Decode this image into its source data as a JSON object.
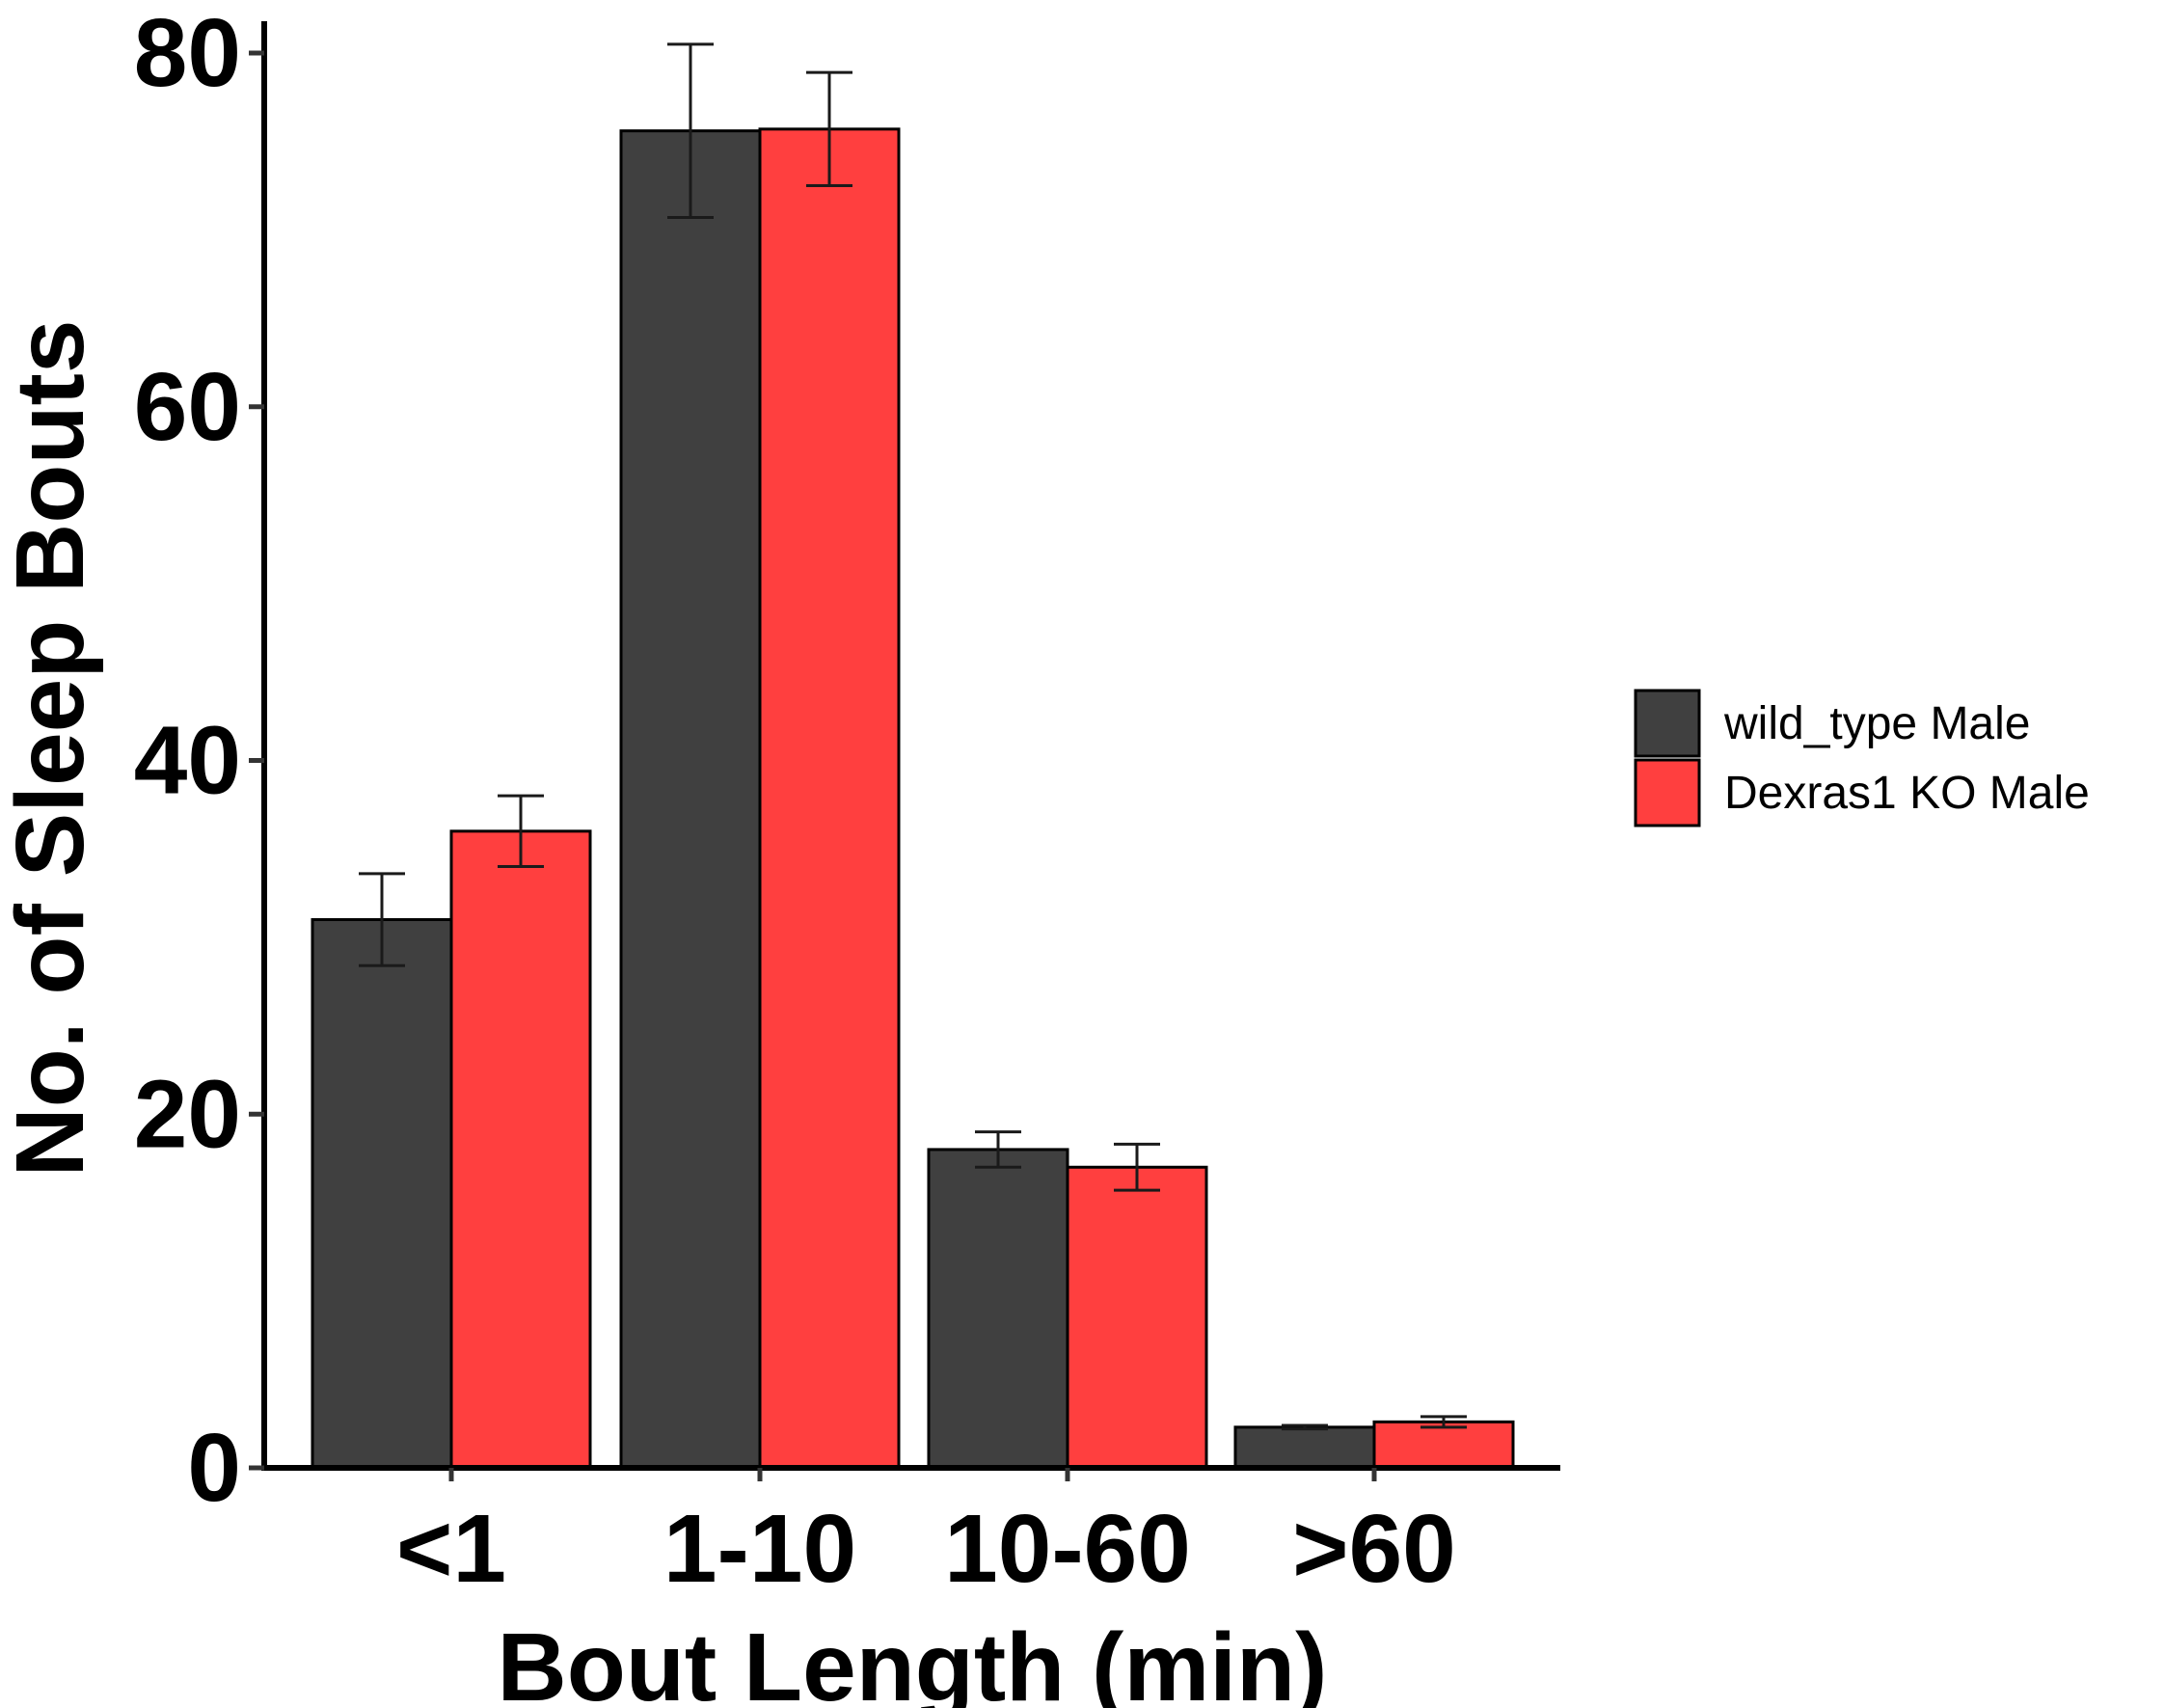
{
  "chart_data": {
    "type": "bar",
    "categories": [
      "<1",
      "1-10",
      "10-60",
      ">60"
    ],
    "series": [
      {
        "name": "wild_type Male",
        "color": "#404040",
        "values": [
          31.0,
          75.6,
          18.0,
          2.3
        ],
        "error": [
          2.6,
          4.9,
          1.0,
          0.1
        ]
      },
      {
        "name": "Dexras1 KO Male",
        "color": "#FF3F3F",
        "values": [
          36.0,
          75.7,
          17.0,
          2.6
        ],
        "error": [
          2.0,
          3.2,
          1.3,
          0.3
        ]
      }
    ],
    "title": "",
    "xlabel": "Bout Length (min)",
    "ylabel": "No. of Sleep Bouts",
    "ylim": [
      0,
      80
    ],
    "yticks": [
      0,
      20,
      40,
      60,
      80
    ],
    "grid": false,
    "legend_position": "right"
  }
}
